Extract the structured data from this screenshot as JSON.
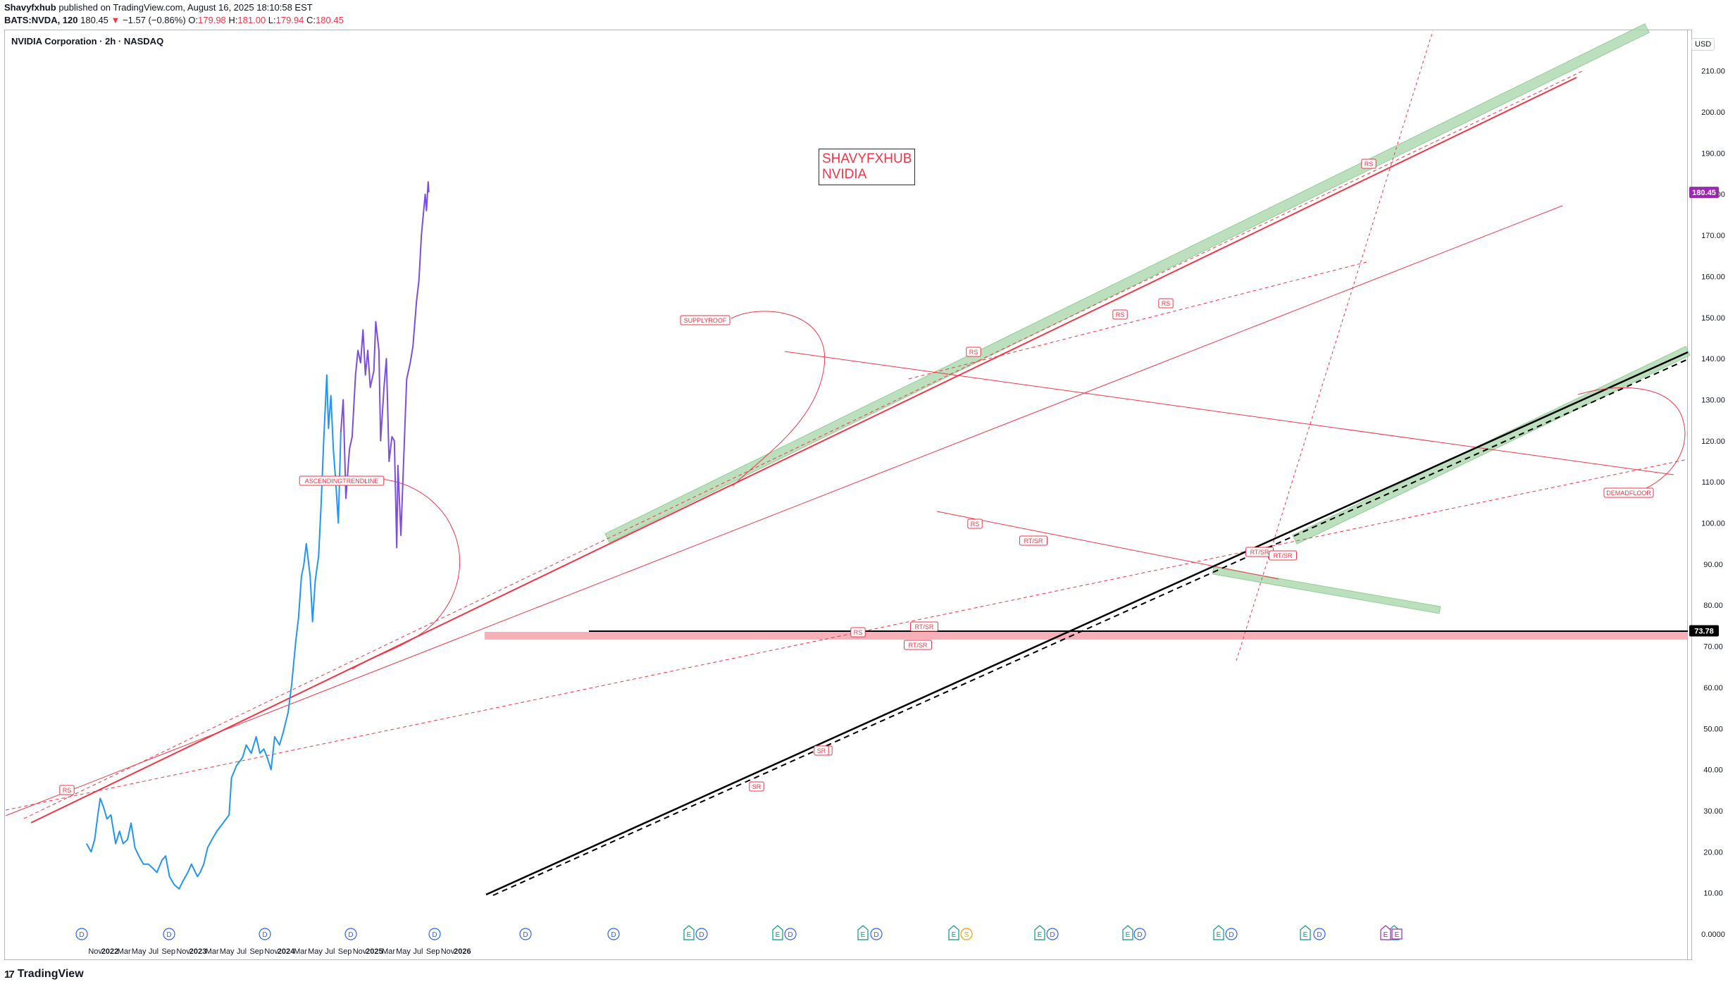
{
  "header": {
    "author": "Shavyfxhub",
    "published": "published on TradingView.com, August 16, 2025 18:10:58 EST",
    "symbol_line": "BATS:NVDA, 120",
    "last": "180.45",
    "arrow": "▼",
    "change": "−1.57 (−0.86%)",
    "o_label": "O:",
    "o": "179.98",
    "h_label": "H:",
    "h": "181.00",
    "l_label": "L:",
    "l": "179.94",
    "c_label": "C:",
    "c": "180.45"
  },
  "legend_title": "NVIDIA Corporation · 2h · NASDAQ",
  "currency": "USD",
  "annotation_box": {
    "line1": "SHAVYFXHUB",
    "line2": "NVIDIA"
  },
  "footer": {
    "brand": "TradingView",
    "logo": "17"
  },
  "colors": {
    "series_early": "#2196f3",
    "series_recent": "#7b4fe0",
    "trend_red": "#f23645",
    "trend_black": "#000000",
    "zone_green": "#a5d6a7",
    "zone_red": "#f7a1ab",
    "last_price_bg": "#9c27b0",
    "level_bg": "#000000"
  },
  "chart_data": {
    "type": "line",
    "title": "NVIDIA Corporation · 2h · NASDAQ",
    "ylabel": "USD",
    "ylim": [
      0,
      215
    ],
    "yticks": [
      "210.00",
      "200.00",
      "190.00",
      "180.00",
      "170.00",
      "160.00",
      "150.00",
      "140.00",
      "130.00",
      "120.00",
      "110.00",
      "100.00",
      "90.00",
      "80.00",
      "70.00",
      "60.00",
      "50.00",
      "40.00",
      "30.00",
      "20.00",
      "10.00",
      "0.0000"
    ],
    "xticks": [
      "Nov",
      "2022",
      "Mar",
      "May",
      "Jul",
      "Sep",
      "Nov",
      "2023",
      "Mar",
      "May",
      "Jul",
      "Sep",
      "Nov",
      "2024",
      "Mar",
      "May",
      "Jul",
      "Sep",
      "Nov",
      "2025",
      "Mar",
      "May",
      "Jul",
      "Sep",
      "Nov",
      "2026"
    ],
    "xlim": [
      "2021-09-26",
      "2026-02-15"
    ],
    "series": [
      {
        "points": [
          [
            "2021-09-26",
            22
          ],
          [
            "2021-10-15",
            20
          ],
          [
            "2021-10-30",
            23
          ],
          [
            "2021-11-12",
            29
          ],
          [
            "2021-11-22",
            33
          ],
          [
            "2021-12-05",
            31
          ],
          [
            "2021-12-20",
            28
          ],
          [
            "2022-01-05",
            29
          ],
          [
            "2022-01-25",
            22
          ],
          [
            "2022-02-10",
            25
          ],
          [
            "2022-02-25",
            22
          ],
          [
            "2022-03-15",
            23
          ],
          [
            "2022-03-30",
            27
          ],
          [
            "2022-04-15",
            21
          ],
          [
            "2022-05-01",
            19
          ],
          [
            "2022-05-20",
            17
          ],
          [
            "2022-06-10",
            17
          ],
          [
            "2022-06-28",
            16
          ],
          [
            "2022-07-15",
            15
          ],
          [
            "2022-08-05",
            18
          ],
          [
            "2022-08-20",
            19
          ],
          [
            "2022-09-05",
            14
          ],
          [
            "2022-09-25",
            12
          ],
          [
            "2022-10-15",
            11
          ],
          [
            "2022-11-01",
            13
          ],
          [
            "2022-11-20",
            15
          ],
          [
            "2022-12-05",
            17
          ],
          [
            "2022-12-30",
            14
          ],
          [
            "2023-01-10",
            15
          ],
          [
            "2023-01-25",
            17
          ],
          [
            "2023-02-10",
            21
          ],
          [
            "2023-02-28",
            23
          ],
          [
            "2023-03-20",
            25
          ],
          [
            "2023-04-15",
            27
          ],
          [
            "2023-05-10",
            29
          ],
          [
            "2023-05-20",
            38
          ],
          [
            "2023-06-10",
            41
          ],
          [
            "2023-07-05",
            43
          ],
          [
            "2023-07-20",
            46
          ],
          [
            "2023-08-10",
            44
          ],
          [
            "2023-08-30",
            48
          ],
          [
            "2023-09-15",
            44
          ],
          [
            "2023-10-01",
            45
          ],
          [
            "2023-10-15",
            43
          ],
          [
            "2023-10-31",
            40
          ],
          [
            "2023-11-15",
            48
          ],
          [
            "2023-12-05",
            46
          ],
          [
            "2023-12-20",
            49
          ],
          [
            "2024-01-10",
            54
          ],
          [
            "2024-01-25",
            61
          ],
          [
            "2024-02-10",
            71
          ],
          [
            "2024-02-22",
            77
          ],
          [
            "2024-03-05",
            87
          ],
          [
            "2024-03-15",
            90
          ],
          [
            "2024-03-25",
            95
          ],
          [
            "2024-04-10",
            87
          ],
          [
            "2024-04-20",
            76
          ],
          [
            "2024-05-01",
            86
          ],
          [
            "2024-05-15",
            92
          ],
          [
            "2024-05-25",
            104
          ],
          [
            "2024-06-05",
            120
          ],
          [
            "2024-06-18",
            136
          ],
          [
            "2024-06-25",
            123
          ],
          [
            "2024-07-05",
            131
          ],
          [
            "2024-07-15",
            118
          ],
          [
            "2024-07-25",
            110
          ],
          [
            "2024-08-05",
            100
          ],
          [
            "2024-08-15",
            122
          ]
        ]
      },
      {
        "points": [
          [
            "2024-08-15",
            122
          ],
          [
            "2024-08-25",
            130
          ],
          [
            "2024-09-05",
            106
          ],
          [
            "2024-09-20",
            118
          ],
          [
            "2024-10-01",
            121
          ],
          [
            "2024-10-15",
            136
          ],
          [
            "2024-10-25",
            142
          ],
          [
            "2024-11-05",
            139
          ],
          [
            "2024-11-15",
            147
          ],
          [
            "2024-11-25",
            136
          ],
          [
            "2024-12-05",
            142
          ],
          [
            "2024-12-15",
            133
          ],
          [
            "2024-12-30",
            137
          ],
          [
            "2025-01-07",
            149
          ],
          [
            "2025-01-20",
            142
          ],
          [
            "2025-01-27",
            120
          ],
          [
            "2025-02-10",
            133
          ],
          [
            "2025-02-20",
            140
          ],
          [
            "2025-03-03",
            115
          ],
          [
            "2025-03-15",
            121
          ],
          [
            "2025-03-25",
            120
          ],
          [
            "2025-04-04",
            94
          ],
          [
            "2025-04-09",
            114
          ],
          [
            "2025-04-21",
            97
          ],
          [
            "2025-05-01",
            113
          ],
          [
            "2025-05-15",
            135
          ],
          [
            "2025-05-30",
            139
          ],
          [
            "2025-06-10",
            143
          ],
          [
            "2025-06-25",
            154
          ],
          [
            "2025-07-05",
            159
          ],
          [
            "2025-07-15",
            170
          ],
          [
            "2025-07-31",
            180
          ],
          [
            "2025-08-05",
            176
          ],
          [
            "2025-08-12",
            183
          ],
          [
            "2025-08-15",
            180.45
          ]
        ]
      }
    ],
    "levels": [
      {
        "label": "73.78",
        "value": 73.78
      },
      {
        "label": "180.45",
        "value": 180.45
      }
    ],
    "event_markers_top": [
      "D",
      "D",
      "D",
      "D",
      "D",
      "D",
      "D",
      "E",
      "D",
      "E",
      "D",
      "E",
      "D",
      "E",
      "S",
      "E",
      "D",
      "E",
      "D",
      "E",
      "D",
      "E",
      "D",
      "E"
    ],
    "annotations": [
      "RS",
      "RS",
      "RS",
      "RS",
      "RS",
      "RS",
      "RS",
      "SR",
      "SR",
      "RT/SR",
      "RT/SR",
      "RT/SR",
      "RT/SR",
      "SR",
      "RT/SR",
      "ASCENDINGTRENDLINE",
      "SUPPLYROOF",
      "DEMADFLOOR"
    ]
  }
}
